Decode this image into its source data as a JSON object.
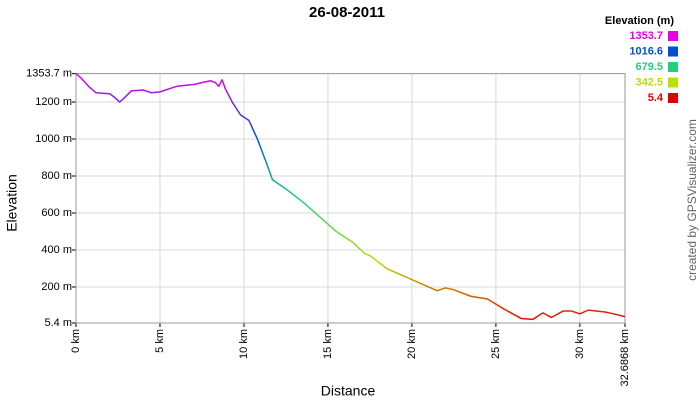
{
  "chart_data": {
    "type": "line",
    "title": "26-08-2011",
    "x_label": "Distance",
    "y_label": "Elevation",
    "credit": "created by GPSVisualizer.com",
    "legend_title": "Elevation (m)",
    "legend": [
      {
        "value": 1353.7,
        "color": "#e800e8"
      },
      {
        "value": 1016.6,
        "color": "#0050d0"
      },
      {
        "value": 679.5,
        "color": "#20d080"
      },
      {
        "value": 342.5,
        "color": "#b8e000"
      },
      {
        "value": 5.4,
        "color": "#e00000"
      }
    ],
    "x": [
      0,
      0.3,
      0.8,
      1.2,
      2,
      2.3,
      2.6,
      2.9,
      3.3,
      4,
      4.5,
      5,
      5.5,
      6,
      7,
      7.5,
      8,
      8.3,
      8.5,
      8.7,
      8.9,
      9.3,
      9.8,
      10.3,
      10.8,
      11.3,
      11.7,
      12.5,
      13.5,
      14.5,
      15.5,
      16.5,
      17.2,
      17.5,
      18.5,
      19.5,
      20.5,
      21.5,
      22,
      22.5,
      23.5,
      24.5,
      25.5,
      26.5,
      27.2,
      27.8,
      28.3,
      29,
      29.5,
      30,
      30.5,
      31.5,
      32,
      32.6868
    ],
    "values": [
      1353.7,
      1330,
      1280,
      1250,
      1245,
      1225,
      1200,
      1225,
      1260,
      1265,
      1250,
      1255,
      1270,
      1285,
      1295,
      1305,
      1315,
      1305,
      1285,
      1320,
      1270,
      1200,
      1130,
      1100,
      1000,
      880,
      780,
      730,
      660,
      580,
      500,
      440,
      380,
      370,
      300,
      260,
      220,
      180,
      195,
      185,
      150,
      135,
      80,
      30,
      25,
      60,
      35,
      70,
      70,
      55,
      75,
      65,
      55,
      40
    ],
    "xlim": [
      0,
      32.6868
    ],
    "xticks": [
      {
        "value": 0,
        "label": "0 km"
      },
      {
        "value": 5,
        "label": "5 km"
      },
      {
        "value": 10,
        "label": "10 km"
      },
      {
        "value": 15,
        "label": "15 km"
      },
      {
        "value": 20,
        "label": "20 km"
      },
      {
        "value": 25,
        "label": "25 km"
      },
      {
        "value": 30,
        "label": "30 km"
      },
      {
        "value": 32.6868,
        "label": "32.6868 km"
      }
    ],
    "ylim": [
      5.4,
      1353.7
    ],
    "yticks": [
      {
        "value": 5.4,
        "label": "5.4 m"
      },
      {
        "value": 200,
        "label": "200 m"
      },
      {
        "value": 400,
        "label": "400 m"
      },
      {
        "value": 600,
        "label": "600 m"
      },
      {
        "value": 800,
        "label": "800 m"
      },
      {
        "value": 1000,
        "label": "1000 m"
      },
      {
        "value": 1200,
        "label": "1200 m"
      },
      {
        "value": 1353.7,
        "label": "1353.7 m"
      }
    ],
    "grid": true
  }
}
